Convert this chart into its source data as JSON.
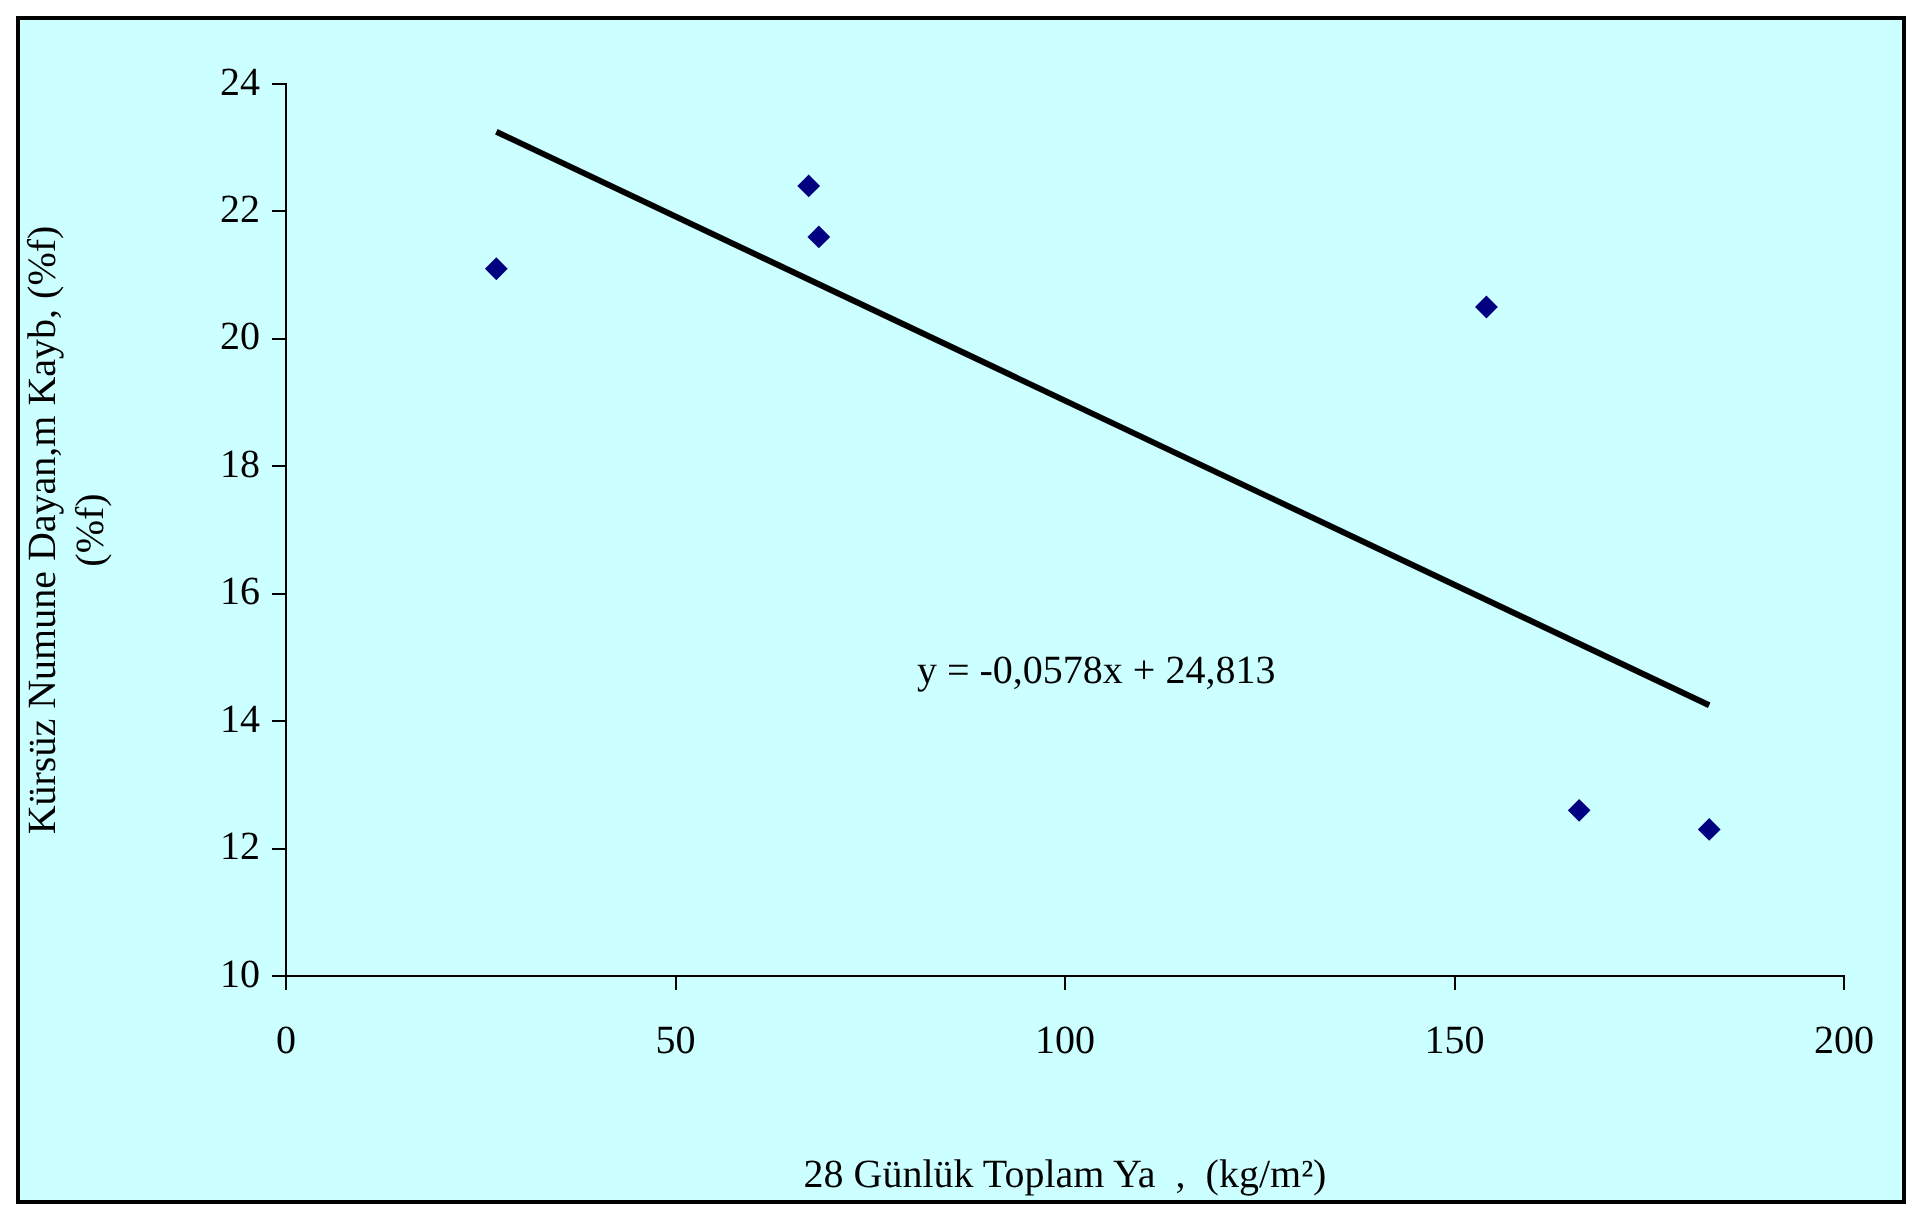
{
  "chart_data": {
    "type": "scatter",
    "xlabel": "28 Günlük Toplam Ya  ,  (kg/m²)",
    "ylabel": "Kürsüz Numune Dayan,m Kayb, (%f)\n(%f)",
    "series": [
      {
        "color": "#000080",
        "marker": "diamond",
        "x": [
          27,
          67.1,
          68.4,
          154.1,
          166,
          182.7
        ],
        "values": [
          21.1,
          22.4,
          21.6,
          20.5,
          12.6,
          12.3
        ]
      },
      {
        "type": "line",
        "color": "#000000",
        "marker": "none",
        "line_style": "solid",
        "x": [
          27,
          182.7
        ],
        "values": [
          23.25,
          14.25
        ]
      }
    ],
    "xlim": [
      0,
      200
    ],
    "xticks": [
      0,
      50,
      100,
      150,
      200
    ],
    "ylim": [
      10,
      24
    ],
    "yticks": [
      10,
      12,
      14,
      16,
      18,
      20,
      22,
      24
    ],
    "grid": false,
    "legend": false,
    "annotations": [
      "y = -0,0578x + 24,813"
    ]
  }
}
